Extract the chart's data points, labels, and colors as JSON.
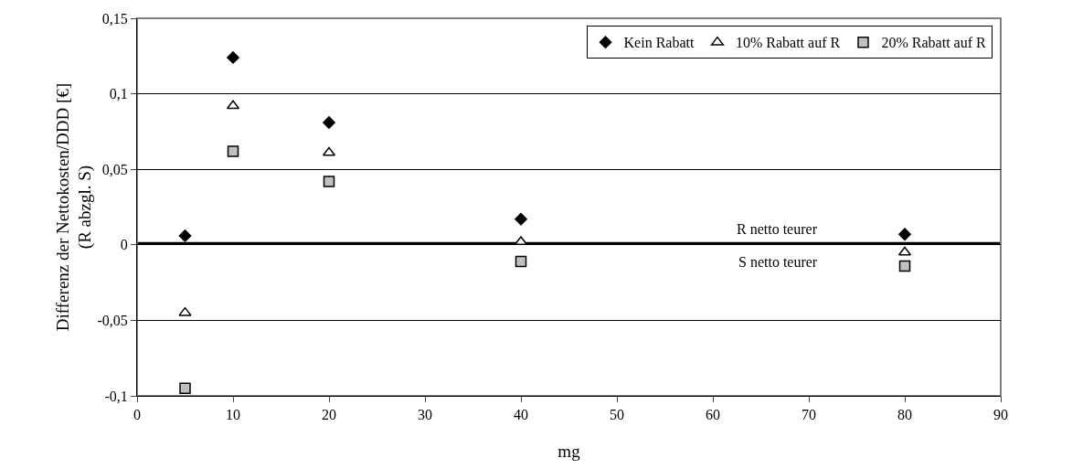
{
  "chart_data": {
    "type": "scatter",
    "xlabel": "mg",
    "ylabel": "Differenz der Nettokosten/DDD [€]\n(R abzgl. S)",
    "x": [
      5,
      10,
      20,
      40,
      80
    ],
    "series": [
      {
        "name": "Kein Rabatt",
        "color": "#000000",
        "marker": "diamond",
        "values": [
          0.006,
          0.124,
          0.081,
          0.017,
          0.007
        ]
      },
      {
        "name": "10% Rabatt auf R",
        "color": "#ffffff",
        "marker": "triangle",
        "values": [
          -0.045,
          0.092,
          0.061,
          0.002,
          -0.005
        ]
      },
      {
        "name": "20% Rabatt auf R",
        "color": "#c0c0c0",
        "marker": "square",
        "values": [
          -0.095,
          0.062,
          0.042,
          -0.011,
          -0.014
        ]
      }
    ],
    "xlim": [
      0,
      90
    ],
    "xticks": [
      0,
      10,
      20,
      30,
      40,
      50,
      60,
      70,
      80,
      90
    ],
    "ylim": [
      -0.1,
      0.15
    ],
    "yticks": [
      {
        "value": -0.1,
        "label": "-0,1"
      },
      {
        "value": -0.05,
        "label": "-0,05"
      },
      {
        "value": 0,
        "label": "0"
      },
      {
        "value": 0.05,
        "label": "0,05"
      },
      {
        "value": 0.1,
        "label": "0,1"
      },
      {
        "value": 0.15,
        "label": "0,15"
      }
    ],
    "ref_lines": [
      {
        "axis": "y",
        "value": 0.001,
        "color": "#000000"
      }
    ],
    "annotations": [
      "R netto teurer",
      "S netto teurer"
    ],
    "grid": "y",
    "legend": "top right"
  }
}
